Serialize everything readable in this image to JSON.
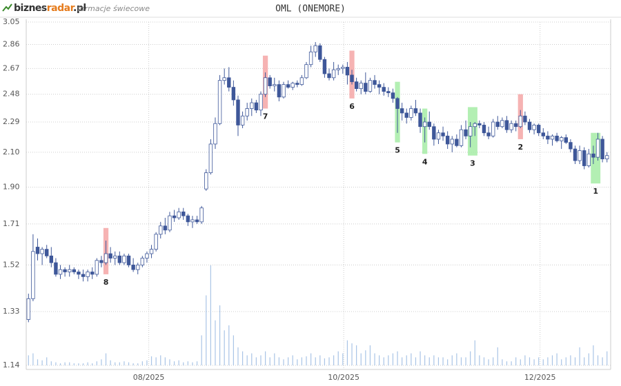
{
  "header": {
    "logo": [
      "biznes",
      "radar",
      ".pl"
    ],
    "subtitle": "formacje świecowe"
  },
  "chart_data": {
    "type": "candlestick",
    "title": "OML (ONEMORE)",
    "log_scale": true,
    "grid": true,
    "up_color": "#ffffff",
    "down_color": "#3e5799",
    "volume_color": "#a9c4e6",
    "ylim": [
      1.14,
      3.05
    ],
    "yticks": [
      1.14,
      1.33,
      1.52,
      1.71,
      {
        "value": 1.9,
        "label": "1.90"
      },
      {
        "value": 2.1,
        "label": "2.10"
      },
      2.29,
      2.48,
      2.67,
      2.86,
      3.05
    ],
    "xlim": [
      -0.5,
      127.8
    ],
    "xticks": [
      {
        "value": 26.4,
        "label": "08/2025"
      },
      {
        "value": 69.2,
        "label": "10/2025"
      },
      {
        "value": 112.3,
        "label": "12/2025"
      }
    ],
    "ohlc": [
      [
        1.3,
        1.4,
        1.29,
        1.38
      ],
      [
        1.38,
        1.66,
        1.37,
        1.58
      ],
      [
        1.6,
        1.64,
        1.54,
        1.57
      ],
      [
        1.57,
        1.6,
        1.52,
        1.59
      ],
      [
        1.59,
        1.61,
        1.55,
        1.56
      ],
      [
        1.56,
        1.6,
        1.51,
        1.53
      ],
      [
        1.53,
        1.55,
        1.47,
        1.48
      ],
      [
        1.48,
        1.52,
        1.46,
        1.5
      ],
      [
        1.5,
        1.51,
        1.47,
        1.49
      ],
      [
        1.49,
        1.52,
        1.47,
        1.5
      ],
      [
        1.5,
        1.51,
        1.48,
        1.49
      ],
      [
        1.49,
        1.5,
        1.46,
        1.48
      ],
      [
        1.48,
        1.5,
        1.45,
        1.47
      ],
      [
        1.47,
        1.5,
        1.45,
        1.49
      ],
      [
        1.49,
        1.51,
        1.46,
        1.48
      ],
      [
        1.48,
        1.55,
        1.47,
        1.54
      ],
      [
        1.54,
        1.56,
        1.51,
        1.53
      ],
      [
        1.53,
        1.63,
        1.52,
        1.57
      ],
      [
        1.57,
        1.6,
        1.53,
        1.55
      ],
      [
        1.55,
        1.58,
        1.52,
        1.56
      ],
      [
        1.56,
        1.58,
        1.52,
        1.53
      ],
      [
        1.53,
        1.57,
        1.52,
        1.56
      ],
      [
        1.56,
        1.57,
        1.51,
        1.52
      ],
      [
        1.52,
        1.55,
        1.49,
        1.5
      ],
      [
        1.5,
        1.53,
        1.48,
        1.52
      ],
      [
        1.52,
        1.56,
        1.51,
        1.55
      ],
      [
        1.55,
        1.58,
        1.53,
        1.57
      ],
      [
        1.57,
        1.61,
        1.55,
        1.59
      ],
      [
        1.59,
        1.67,
        1.58,
        1.66
      ],
      [
        1.66,
        1.72,
        1.64,
        1.7
      ],
      [
        1.7,
        1.74,
        1.66,
        1.68
      ],
      [
        1.68,
        1.77,
        1.67,
        1.75
      ],
      [
        1.75,
        1.78,
        1.72,
        1.74
      ],
      [
        1.74,
        1.79,
        1.73,
        1.77
      ],
      [
        1.77,
        1.79,
        1.73,
        1.75
      ],
      [
        1.75,
        1.76,
        1.7,
        1.72
      ],
      [
        1.72,
        1.75,
        1.69,
        1.73
      ],
      [
        1.73,
        1.75,
        1.71,
        1.72
      ],
      [
        1.72,
        1.8,
        1.71,
        1.79
      ],
      [
        1.89,
        2.0,
        1.88,
        1.98
      ],
      [
        1.98,
        2.18,
        1.97,
        2.15
      ],
      [
        2.15,
        2.32,
        2.12,
        2.28
      ],
      [
        2.28,
        2.62,
        2.27,
        2.58
      ],
      [
        2.58,
        2.67,
        2.55,
        2.6
      ],
      [
        2.6,
        2.68,
        2.5,
        2.53
      ],
      [
        2.53,
        2.58,
        2.4,
        2.44
      ],
      [
        2.44,
        2.47,
        2.2,
        2.27
      ],
      [
        2.27,
        2.36,
        2.25,
        2.33
      ],
      [
        2.33,
        2.42,
        2.3,
        2.38
      ],
      [
        2.38,
        2.45,
        2.33,
        2.42
      ],
      [
        2.42,
        2.44,
        2.35,
        2.37
      ],
      [
        2.37,
        2.5,
        2.33,
        2.48
      ],
      [
        2.48,
        2.64,
        2.46,
        2.6
      ],
      [
        2.6,
        2.62,
        2.52,
        2.54
      ],
      [
        2.54,
        2.6,
        2.5,
        2.55
      ],
      [
        2.55,
        2.58,
        2.43,
        2.46
      ],
      [
        2.46,
        2.57,
        2.45,
        2.55
      ],
      [
        2.55,
        2.58,
        2.52,
        2.53
      ],
      [
        2.53,
        2.57,
        2.51,
        2.56
      ],
      [
        2.56,
        2.58,
        2.53,
        2.55
      ],
      [
        2.55,
        2.62,
        2.54,
        2.6
      ],
      [
        2.6,
        2.72,
        2.59,
        2.7
      ],
      [
        2.7,
        2.85,
        2.68,
        2.8
      ],
      [
        2.8,
        2.88,
        2.76,
        2.85
      ],
      [
        2.85,
        2.87,
        2.72,
        2.74
      ],
      [
        2.74,
        2.76,
        2.6,
        2.63
      ],
      [
        2.63,
        2.67,
        2.58,
        2.6
      ],
      [
        2.6,
        2.72,
        2.58,
        2.66
      ],
      [
        2.66,
        2.7,
        2.62,
        2.67
      ],
      [
        2.67,
        2.7,
        2.63,
        2.68
      ],
      [
        2.68,
        2.72,
        2.55,
        2.62
      ],
      [
        2.62,
        2.66,
        2.55,
        2.57
      ],
      [
        2.57,
        2.6,
        2.5,
        2.52
      ],
      [
        2.52,
        2.58,
        2.48,
        2.56
      ],
      [
        2.56,
        2.64,
        2.48,
        2.5
      ],
      [
        2.5,
        2.6,
        2.49,
        2.58
      ],
      [
        2.58,
        2.62,
        2.52,
        2.55
      ],
      [
        2.55,
        2.58,
        2.48,
        2.53
      ],
      [
        2.53,
        2.56,
        2.47,
        2.5
      ],
      [
        2.5,
        2.53,
        2.46,
        2.49
      ],
      [
        2.49,
        2.52,
        2.42,
        2.45
      ],
      [
        2.45,
        2.46,
        2.22,
        2.38
      ],
      [
        2.38,
        2.42,
        2.3,
        2.35
      ],
      [
        2.35,
        2.38,
        2.28,
        2.32
      ],
      [
        2.32,
        2.4,
        2.3,
        2.38
      ],
      [
        2.38,
        2.44,
        2.33,
        2.35
      ],
      [
        2.35,
        2.38,
        2.22,
        2.26
      ],
      [
        2.26,
        2.32,
        2.16,
        2.29
      ],
      [
        2.29,
        2.36,
        2.24,
        2.26
      ],
      [
        2.26,
        2.28,
        2.14,
        2.18
      ],
      [
        2.18,
        2.24,
        2.15,
        2.22
      ],
      [
        2.22,
        2.26,
        2.17,
        2.2
      ],
      [
        2.2,
        2.23,
        2.12,
        2.15
      ],
      [
        2.15,
        2.2,
        2.1,
        2.18
      ],
      [
        2.18,
        2.21,
        2.13,
        2.14
      ],
      [
        2.14,
        2.27,
        2.13,
        2.24
      ],
      [
        2.24,
        2.3,
        2.18,
        2.2
      ],
      [
        2.2,
        2.29,
        2.13,
        2.26
      ],
      [
        2.26,
        2.29,
        2.2,
        2.28
      ],
      [
        2.28,
        2.3,
        2.25,
        2.27
      ],
      [
        2.27,
        2.29,
        2.2,
        2.22
      ],
      [
        2.22,
        2.26,
        2.18,
        2.2
      ],
      [
        2.2,
        2.31,
        2.19,
        2.29
      ],
      [
        2.29,
        2.33,
        2.24,
        2.26
      ],
      [
        2.26,
        2.32,
        2.25,
        2.3
      ],
      [
        2.3,
        2.33,
        2.22,
        2.24
      ],
      [
        2.24,
        2.3,
        2.22,
        2.28
      ],
      [
        2.28,
        2.3,
        2.23,
        2.26
      ],
      [
        2.26,
        2.37,
        2.25,
        2.33
      ],
      [
        2.33,
        2.36,
        2.27,
        2.29
      ],
      [
        2.29,
        2.31,
        2.22,
        2.24
      ],
      [
        2.24,
        2.28,
        2.21,
        2.27
      ],
      [
        2.27,
        2.28,
        2.2,
        2.22
      ],
      [
        2.22,
        2.25,
        2.18,
        2.2
      ],
      [
        2.2,
        2.23,
        2.15,
        2.18
      ],
      [
        2.18,
        2.21,
        2.14,
        2.2
      ],
      [
        2.2,
        2.22,
        2.16,
        2.17
      ],
      [
        2.17,
        2.2,
        2.12,
        2.19
      ],
      [
        2.19,
        2.21,
        2.15,
        2.16
      ],
      [
        2.16,
        2.18,
        2.1,
        2.12
      ],
      [
        2.12,
        2.14,
        2.03,
        2.05
      ],
      [
        2.05,
        2.14,
        2.03,
        2.11
      ],
      [
        2.11,
        2.13,
        2.0,
        2.02
      ],
      [
        2.02,
        2.12,
        2.01,
        2.09
      ],
      [
        2.09,
        2.14,
        2.03,
        2.07
      ],
      [
        2.07,
        2.22,
        2.05,
        2.18
      ],
      [
        2.18,
        2.2,
        2.04,
        2.06
      ],
      [
        2.06,
        2.1,
        2.04,
        2.08
      ]
    ],
    "volume": [
      10,
      12,
      6,
      5,
      8,
      4,
      3,
      2,
      3,
      3,
      2,
      2,
      2,
      3,
      2,
      4,
      6,
      12,
      5,
      3,
      3,
      4,
      3,
      2,
      2,
      4,
      5,
      9,
      8,
      10,
      8,
      6,
      4,
      5,
      3,
      4,
      3,
      4,
      30,
      70,
      100,
      45,
      60,
      35,
      40,
      30,
      18,
      14,
      10,
      12,
      8,
      10,
      14,
      8,
      12,
      8,
      6,
      8,
      10,
      6,
      8,
      9,
      12,
      8,
      10,
      7,
      8,
      10,
      14,
      12,
      25,
      22,
      20,
      12,
      15,
      20,
      12,
      10,
      8,
      10,
      12,
      14,
      8,
      10,
      12,
      8,
      14,
      10,
      8,
      10,
      8,
      8,
      6,
      10,
      12,
      8,
      8,
      14,
      25,
      10,
      8,
      6,
      8,
      18,
      6,
      4,
      4,
      8,
      6,
      10,
      8,
      6,
      8,
      6,
      8,
      10,
      12,
      6,
      8,
      10,
      8,
      18,
      8,
      12,
      20,
      10,
      8,
      14
    ],
    "patterns": [
      {
        "label": "8",
        "index": 17,
        "color": "#f4a6a6",
        "low": 1.48,
        "high": 1.69
      },
      {
        "label": "7",
        "index": 52,
        "color": "#f4a6a6",
        "low": 2.38,
        "high": 2.77
      },
      {
        "label": "6",
        "index": 71,
        "color": "#f4a6a6",
        "low": 2.45,
        "high": 2.81
      },
      {
        "label": "5",
        "index": 81,
        "color": "#a6eca6",
        "low": 2.16,
        "high": 2.57
      },
      {
        "label": "4",
        "index": 87,
        "color": "#a6eca6",
        "low": 2.09,
        "high": 2.38
      },
      {
        "label": "3",
        "index": 97,
        "color": "#a6eca6",
        "low": 2.08,
        "high": 2.39
      },
      {
        "label": "2",
        "index": 108,
        "color": "#f4a6a6",
        "low": 2.18,
        "high": 2.48
      },
      {
        "label": "1",
        "index": 124,
        "color": "#a6eca6",
        "low": 1.92,
        "high": 2.22
      }
    ]
  }
}
